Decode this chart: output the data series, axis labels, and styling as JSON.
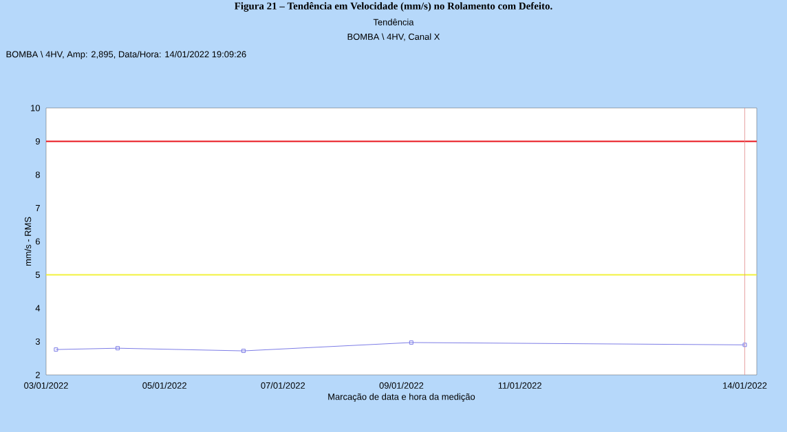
{
  "chart_data": {
    "type": "line",
    "title": "Tendência",
    "subtitle": "BOMBA \\ 4HV, Canal X",
    "xlabel": "Marcação de data e hora da medição",
    "ylabel": "mm/s - RMS",
    "annotations": [
      "Figura 21 – Tendência em Velocidade (mm/s) no Rolamento com Defeito.",
      "BOMBA \\ 4HV, Amp: 2,895, Data/Hora: 14/01/2022 19:09:26"
    ],
    "x": [
      "2022-01-03T04:00",
      "2022-01-04T05:00",
      "2022-01-06T08:00",
      "2022-01-09T04:00",
      "2022-01-14T19:09"
    ],
    "series": [
      {
        "color": "#7b7be6",
        "values": [
          2.76,
          2.8,
          2.72,
          2.97,
          2.9
        ]
      }
    ],
    "marker": "square",
    "grid": false,
    "xlim": [
      "2022-01-03",
      "2022-01-15"
    ],
    "xticks": [
      {
        "value": "2022-01-03",
        "label": "03/01/2022"
      },
      {
        "value": "2022-01-05",
        "label": "05/01/2022"
      },
      {
        "value": "2022-01-07",
        "label": "07/01/2022"
      },
      {
        "value": "2022-01-09",
        "label": "09/01/2022"
      },
      {
        "value": "2022-01-11",
        "label": "11/01/2022"
      },
      {
        "value": "2022-01-14T19:09",
        "label": "14/01/2022"
      }
    ],
    "ylim": [
      2,
      10
    ],
    "yticks": [
      2,
      3,
      4,
      5,
      6,
      7,
      8,
      9,
      10
    ],
    "ref_lines": [
      {
        "axis": "y",
        "value": 9,
        "color": "#e8141c"
      },
      {
        "axis": "y",
        "value": 5,
        "color": "#f2f23c"
      },
      {
        "axis": "x",
        "value": "2022-01-14T19:09",
        "color": "#e08a8a"
      }
    ]
  }
}
